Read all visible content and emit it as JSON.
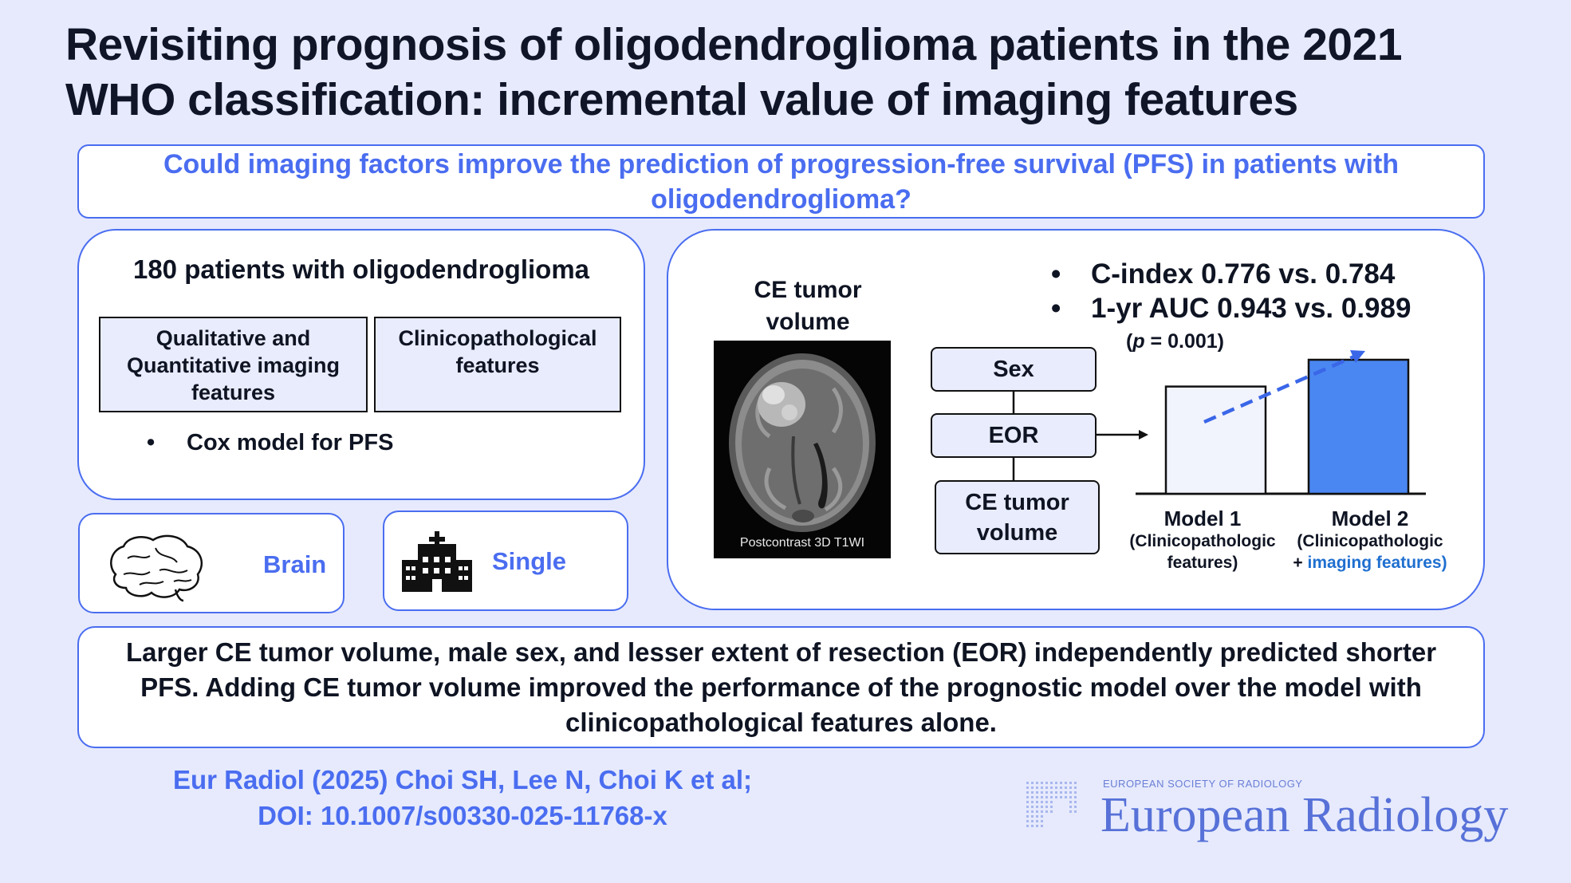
{
  "title": {
    "line1": "Revisiting prognosis of oligodendroglioma patients in the 2021",
    "line2": "WHO classification: incremental value of imaging features"
  },
  "question": "Could imaging factors improve the prediction of progression-free survival (PFS) in patients with oligodendroglioma?",
  "methods": {
    "heading": "180 patients with oligodendroglioma",
    "features": [
      {
        "line1": "Qualitative and",
        "line2": "Quantitative imaging",
        "line3": "features"
      },
      {
        "line1": "Clinicopathological",
        "line2": "features"
      }
    ],
    "bullet": "Cox model for PFS"
  },
  "tags": {
    "brain": {
      "label": "Brain",
      "icon": "brain-icon"
    },
    "single": {
      "label": "Single",
      "icon": "hospital-icon"
    }
  },
  "results": {
    "image_label": {
      "line1": "CE tumor",
      "line2": "volume"
    },
    "image_caption": "Postcontrast 3D T1WI",
    "stats": [
      "C-index 0.776 vs. 0.784",
      "1-yr AUC 0.943 vs. 0.989"
    ],
    "pvalue": {
      "p": "p",
      "rest": " = 0.001)",
      "open": "("
    },
    "factors": [
      "Sex",
      "EOR",
      "CE tumor volume"
    ],
    "models": [
      {
        "name": "Model 1",
        "sub1": "(Clinicopathologic",
        "sub2": "features)",
        "relative_height": 0.8,
        "fill": "#f1f3fd"
      },
      {
        "name": "Model 2",
        "sub1": "(Clinicopathologic",
        "sub2_plus": "+ ",
        "sub2_blue": "imaging features)",
        "relative_height": 1.0,
        "fill": "#4a87f2"
      }
    ]
  },
  "conclusion": "Larger CE tumor volume, male sex, and lesser extent of resection (EOR) independently predicted shorter PFS. Adding CE tumor volume improved the performance of the prognostic model over the model with clinicopathological features alone.",
  "citation": {
    "line1": "Eur Radiol (2025) Choi SH, Lee N, Choi K et al;",
    "line2": "DOI: 10.1007/s00330-025-11768-x"
  },
  "brand": {
    "small": "EUROPEAN SOCIETY OF RADIOLOGY",
    "big": "European Radiology"
  },
  "colors": {
    "background": "#e6eafc",
    "accent": "#4a6df0",
    "bar_blue": "#4a87f2"
  }
}
